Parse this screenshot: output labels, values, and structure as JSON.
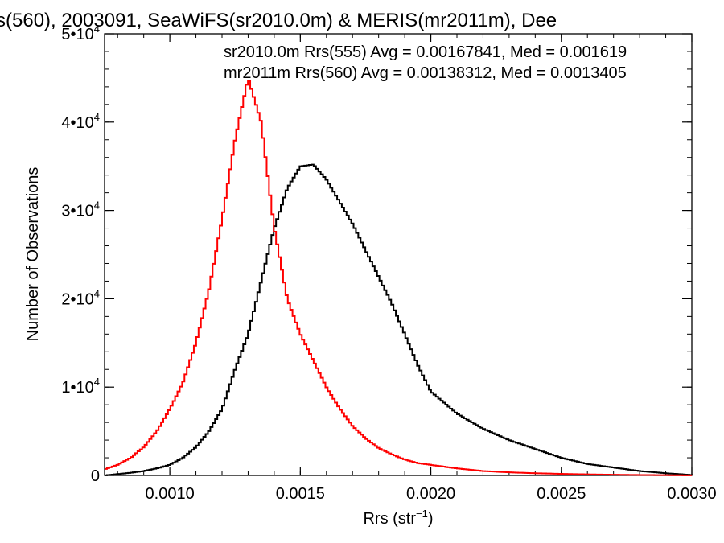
{
  "chart_data": {
    "type": "line",
    "title": "s(560), 2003091, SeaWiFS(sr2010.0m) & MERIS(mr2011m), Dee",
    "xlabel": "Rrs (str",
    "xlabel_sup": "−1",
    "xlabel_close": ")",
    "ylabel": "Number of Observations",
    "xlim": [
      0.00075,
      0.003
    ],
    "ylim": [
      0,
      50000
    ],
    "x_ticks": [
      0.001,
      0.0015,
      0.002,
      0.0025,
      0.003
    ],
    "x_tick_labels": [
      "0.0010",
      "0.0015",
      "0.0020",
      "0.0025",
      "0.0030"
    ],
    "y_ticks": [
      0,
      10000,
      20000,
      30000,
      40000,
      50000
    ],
    "y_tick_labels": [
      {
        "base": "0",
        "exp": ""
      },
      {
        "base": "1•10",
        "exp": "4"
      },
      {
        "base": "2•10",
        "exp": "4"
      },
      {
        "base": "3•10",
        "exp": "4"
      },
      {
        "base": "4•10",
        "exp": "4"
      },
      {
        "base": "5•10",
        "exp": "4"
      }
    ],
    "grid": false,
    "step": true,
    "legend_placement": "top-right",
    "series": [
      {
        "name": "sr2010.0m Rrs(555) Avg = 0.00167841, Med = 0.001619",
        "color": "#000000",
        "x": [
          0.00075,
          0.0008,
          0.00085,
          0.0009,
          0.00095,
          0.001,
          0.00105,
          0.0011,
          0.00115,
          0.0012,
          0.00125,
          0.0013,
          0.00135,
          0.0014,
          0.00145,
          0.0015,
          0.00155,
          0.0016,
          0.00165,
          0.0017,
          0.00175,
          0.0018,
          0.00185,
          0.0019,
          0.00195,
          0.002,
          0.0021,
          0.0022,
          0.0023,
          0.0024,
          0.0025,
          0.0026,
          0.0027,
          0.0028,
          0.0029,
          0.003
        ],
        "y": [
          0,
          150,
          300,
          500,
          800,
          1200,
          2000,
          3200,
          5000,
          7500,
          12000,
          16000,
          22000,
          28000,
          32500,
          35000,
          35200,
          33500,
          31000,
          28500,
          25500,
          22500,
          19500,
          16000,
          12500,
          9500,
          7000,
          5300,
          4000,
          3000,
          2000,
          1300,
          900,
          500,
          250,
          50
        ]
      },
      {
        "name": "mr2011m Rrs(560) Avg = 0.00138312, Med = 0.0013405",
        "color": "#ff0000",
        "x": [
          0.00075,
          0.0008,
          0.00085,
          0.0009,
          0.00095,
          0.001,
          0.00105,
          0.0011,
          0.00115,
          0.0012,
          0.00125,
          0.0013,
          0.00135,
          0.0014,
          0.00145,
          0.0015,
          0.00155,
          0.0016,
          0.00165,
          0.0017,
          0.00175,
          0.0018,
          0.00185,
          0.0019,
          0.00195,
          0.002,
          0.0021,
          0.0022,
          0.0023,
          0.0024,
          0.0025,
          0.0026,
          0.0027,
          0.0028,
          0.0029,
          0.003
        ],
        "y": [
          700,
          1200,
          2000,
          3200,
          5000,
          7500,
          10500,
          15000,
          21000,
          29000,
          38000,
          45000,
          40000,
          28000,
          20000,
          16000,
          13000,
          10000,
          7600,
          5600,
          4200,
          3100,
          2400,
          1800,
          1400,
          1200,
          800,
          500,
          350,
          250,
          180,
          120,
          80,
          50,
          30,
          10
        ]
      }
    ]
  }
}
